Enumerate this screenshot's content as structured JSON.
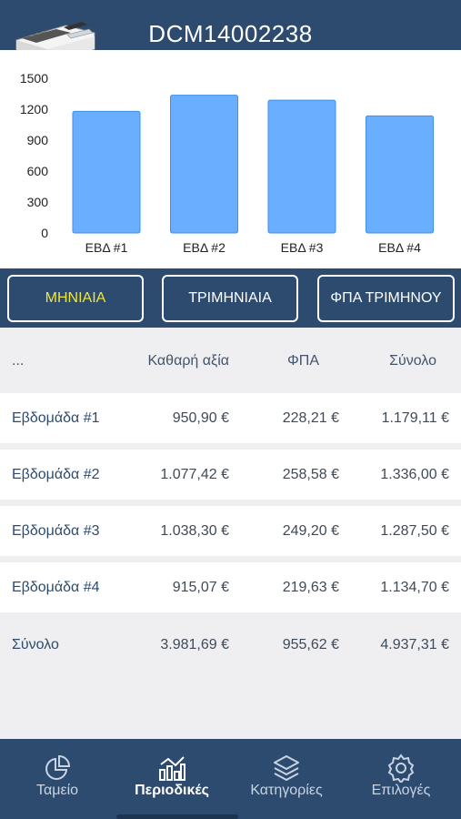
{
  "header": {
    "title": "DCM14002238",
    "logo_icon": "cash-register-icon"
  },
  "chart_data": {
    "type": "bar",
    "categories": [
      "ΕΒΔ #1",
      "ΕΒΔ #2",
      "ΕΒΔ #3",
      "ΕΒΔ #4"
    ],
    "values": [
      1179.11,
      1336.0,
      1287.5,
      1134.7
    ],
    "yticks": [
      "0",
      "300",
      "600",
      "900",
      "1200",
      "1500"
    ],
    "ylim": [
      0,
      1500
    ],
    "bar_color": "#6aafff",
    "bar_border": "#3f8fe8",
    "grid": false
  },
  "segments": [
    {
      "label": "ΜΗΝΙΑΙΑ",
      "active": true
    },
    {
      "label": "ΤΡΙΜΗΝΙΑΙΑ",
      "active": false
    },
    {
      "label": "ΦΠΑ ΤΡΙΜΗΝΟΥ",
      "active": false
    }
  ],
  "table": {
    "headers": [
      "...",
      "Καθαρή αξία",
      "ΦΠΑ",
      "Σύνολο"
    ],
    "rows": [
      {
        "name": "Εβδομάδα #1",
        "net": "950,90 €",
        "vat": "228,21 €",
        "total": "1.179,11 €"
      },
      {
        "name": "Εβδομάδα #2",
        "net": "1.077,42 €",
        "vat": "258,58 €",
        "total": "1.336,00 €"
      },
      {
        "name": "Εβδομάδα #3",
        "net": "1.038,30 €",
        "vat": "249,20 €",
        "total": "1.287,50 €"
      },
      {
        "name": "Εβδομάδα #4",
        "net": "915,07 €",
        "vat": "219,63 €",
        "total": "1.134,70 €"
      }
    ],
    "summary": {
      "name": "Σύνολο",
      "net": "3.981,69 €",
      "vat": "955,62 €",
      "total": "4.937,31 €"
    }
  },
  "tabs": [
    {
      "label": "Ταμείο",
      "icon": "pie-chart-icon",
      "active": false
    },
    {
      "label": "Περιοδικές",
      "icon": "bar-chart-icon",
      "active": true
    },
    {
      "label": "Κατηγορίες",
      "icon": "layers-icon",
      "active": false
    },
    {
      "label": "Επιλογές",
      "icon": "gear-icon",
      "active": false
    }
  ],
  "colors": {
    "primary": "#2d4b6e",
    "active_segment_text": "#f0e53a",
    "row_name": "#2d4b6e"
  }
}
